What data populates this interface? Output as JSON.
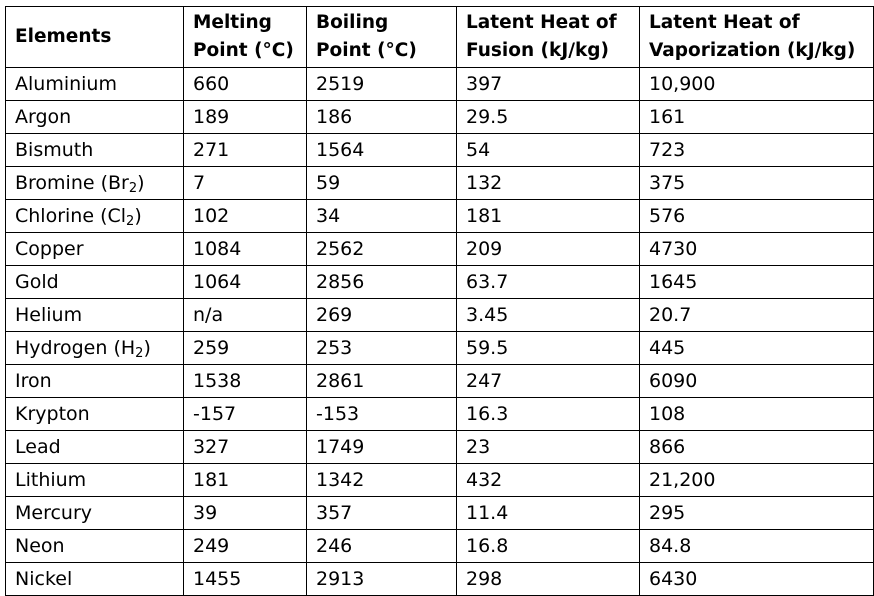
{
  "table": {
    "headers": [
      "Elements",
      "Melting\nPoint (°C)",
      "Boiling\nPoint (°C)",
      "Latent Heat of\nFusion (kJ/kg)",
      "Latent Heat of\nVaporization (kJ/kg)"
    ],
    "rows": [
      {
        "name": "Aluminium",
        "melting": "660",
        "boiling": "2519",
        "fusion": "397",
        "vaporization": "10,900"
      },
      {
        "name": "Argon",
        "melting": "189",
        "boiling": "186",
        "fusion": "29.5",
        "vaporization": "161"
      },
      {
        "name": "Bismuth",
        "melting": "271",
        "boiling": "1564",
        "fusion": "54",
        "vaporization": "723"
      },
      {
        "name": "Bromine (Br",
        "sub": "2",
        "suffix": ")",
        "melting": "7",
        "boiling": "59",
        "fusion": "132",
        "vaporization": "375"
      },
      {
        "name": "Chlorine (Cl",
        "sub": "2",
        "suffix": ")",
        "melting": "102",
        "boiling": "34",
        "fusion": "181",
        "vaporization": "576"
      },
      {
        "name": "Copper",
        "melting": "1084",
        "boiling": "2562",
        "fusion": "209",
        "vaporization": "4730"
      },
      {
        "name": "Gold",
        "melting": "1064",
        "boiling": "2856",
        "fusion": "63.7",
        "vaporization": "1645"
      },
      {
        "name": "Helium",
        "melting": "n/a",
        "boiling": "269",
        "fusion": "3.45",
        "vaporization": "20.7"
      },
      {
        "name": "Hydrogen (H",
        "sub": "2",
        "suffix": ")",
        "melting": "259",
        "boiling": "253",
        "fusion": "59.5",
        "vaporization": "445"
      },
      {
        "name": "Iron",
        "melting": "1538",
        "boiling": "2861",
        "fusion": "247",
        "vaporization": "6090"
      },
      {
        "name": "Krypton",
        "melting": "-157",
        "boiling": "-153",
        "fusion": "16.3",
        "vaporization": "108"
      },
      {
        "name": "Lead",
        "melting": "327",
        "boiling": "1749",
        "fusion": "23",
        "vaporization": "866"
      },
      {
        "name": "Lithium",
        "melting": "181",
        "boiling": "1342",
        "fusion": "432",
        "vaporization": "21,200"
      },
      {
        "name": "Mercury",
        "melting": "39",
        "boiling": "357",
        "fusion": "11.4",
        "vaporization": "295"
      },
      {
        "name": "Neon",
        "melting": "249",
        "boiling": "246",
        "fusion": "16.8",
        "vaporization": "84.8"
      },
      {
        "name": "Nickel",
        "melting": "1455",
        "boiling": "2913",
        "fusion": "298",
        "vaporization": "6430"
      }
    ]
  }
}
